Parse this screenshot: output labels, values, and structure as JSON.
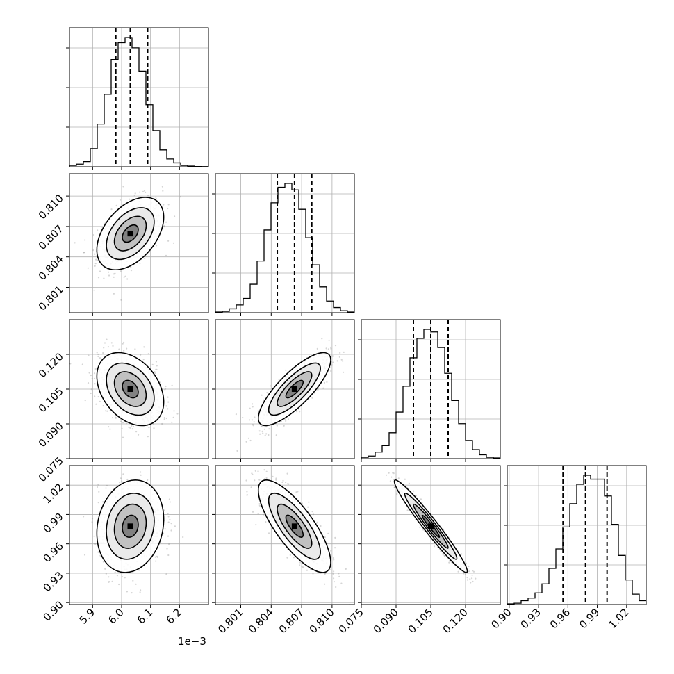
{
  "chart_data": {
    "type": "corner",
    "parameters": 4,
    "axis_offset_text": "1e−3",
    "ranges": [
      [
        5.82,
        6.3
      ],
      [
        0.7985,
        0.8122
      ],
      [
        0.075,
        0.135
      ],
      [
        0.898,
        1.04
      ]
    ],
    "tick_labels": [
      [
        "5.9",
        "6.0",
        "6.1",
        "6.2"
      ],
      [
        "0.801",
        "0.804",
        "0.807",
        "0.810"
      ],
      [
        "0.075",
        "0.090",
        "0.105",
        "0.120"
      ],
      [
        "0.90",
        "0.93",
        "0.96",
        "0.99",
        "1.02"
      ]
    ],
    "tick_values": [
      [
        5.9,
        6.0,
        6.1,
        6.2
      ],
      [
        0.801,
        0.804,
        0.807,
        0.81
      ],
      [
        0.075,
        0.09,
        0.105,
        0.12
      ],
      [
        0.9,
        0.93,
        0.96,
        0.99,
        1.02
      ]
    ],
    "quantiles": [
      [
        5.98,
        6.03,
        6.09
      ],
      [
        0.8046,
        0.8063,
        0.808
      ],
      [
        0.0975,
        0.105,
        0.1125
      ],
      [
        0.955,
        0.978,
        1.0
      ]
    ],
    "histograms": [
      [
        0.01,
        0.02,
        0.04,
        0.14,
        0.33,
        0.56,
        0.83,
        0.96,
        1.0,
        0.92,
        0.74,
        0.48,
        0.28,
        0.13,
        0.06,
        0.03,
        0.01,
        0.005,
        0.002,
        0.001
      ],
      [
        0.005,
        0.01,
        0.03,
        0.06,
        0.11,
        0.22,
        0.4,
        0.64,
        0.85,
        0.97,
        1.0,
        0.95,
        0.8,
        0.58,
        0.37,
        0.2,
        0.09,
        0.04,
        0.015,
        0.005
      ],
      [
        0.01,
        0.02,
        0.05,
        0.1,
        0.2,
        0.36,
        0.56,
        0.78,
        0.93,
        1.0,
        0.98,
        0.86,
        0.66,
        0.45,
        0.27,
        0.14,
        0.07,
        0.03,
        0.01,
        0.005
      ],
      [
        0.005,
        0.01,
        0.03,
        0.05,
        0.09,
        0.16,
        0.28,
        0.43,
        0.6,
        0.78,
        0.93,
        1.0,
        0.97,
        0.97,
        0.84,
        0.62,
        0.38,
        0.19,
        0.08,
        0.03
      ]
    ],
    "correlations": [
      [
        1.0,
        0.45,
        -0.35,
        0.15
      ],
      [
        0.45,
        1.0,
        0.8,
        -0.78
      ],
      [
        -0.35,
        0.8,
        1.0,
        -0.97
      ],
      [
        0.15,
        -0.78,
        -0.97,
        1.0
      ]
    ],
    "grid": true
  }
}
